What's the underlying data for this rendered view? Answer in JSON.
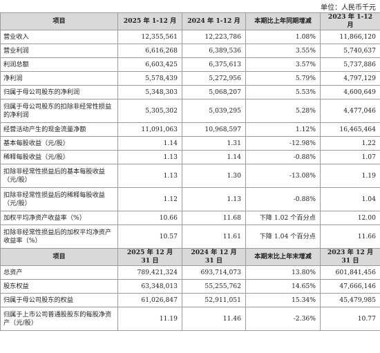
{
  "unit_label": "单位：人民币千元",
  "headers_1": [
    "项目",
    "2025 年 1-12 月",
    "2024 年 1-12 月",
    "本期比上年同期增减",
    "2023 年 1-12 月"
  ],
  "rows_1": [
    {
      "label": "营业收入",
      "v2025": "12,355,561",
      "v2024": "12,223,786",
      "change": "1.08%",
      "v2023": "11,866,120"
    },
    {
      "label": "营业利润",
      "v2025": "6,616,268",
      "v2024": "6,389,536",
      "change": "3.55%",
      "v2023": "5,740,637"
    },
    {
      "label": "利润总额",
      "v2025": "6,603,425",
      "v2024": "6,375,613",
      "change": "3.57%",
      "v2023": "5,737,886"
    },
    {
      "label": "净利润",
      "v2025": "5,578,439",
      "v2024": "5,272,956",
      "change": "5.79%",
      "v2023": "4,797,129"
    },
    {
      "label": "归属于母公司股东的净利润",
      "v2025": "5,348,303",
      "v2024": "5,068,207",
      "change": "5.53%",
      "v2023": "4,600,649"
    },
    {
      "label": "归属于母公司股东的扣除非经常性损益的净利润",
      "v2025": "5,305,302",
      "v2024": "5,039,295",
      "change": "5.28%",
      "v2023": "4,477,046"
    },
    {
      "label": "经营活动产生的现金流量净额",
      "v2025": "11,091,063",
      "v2024": "10,968,597",
      "change": "1.12%",
      "v2023": "16,465,464"
    },
    {
      "label": "基本每股收益（元/股）",
      "v2025": "1.14",
      "v2024": "1.31",
      "change": "-12.98%",
      "v2023": "1.22"
    },
    {
      "label": "稀释每股收益（元/股）",
      "v2025": "1.13",
      "v2024": "1.14",
      "change": "-0.88%",
      "v2023": "1.07"
    },
    {
      "label": "扣除非经常性损益后的基本每股收益（元/股）",
      "v2025": "1.13",
      "v2024": "1.30",
      "change": "-13.08%",
      "v2023": "1.19"
    },
    {
      "label": "扣除非经常性损益后的稀释每股收益（元/股）",
      "v2025": "1.12",
      "v2024": "1.13",
      "change": "-0.88%",
      "v2023": "1.04"
    },
    {
      "label": "加权平均净资产收益率（%）",
      "v2025": "10.66",
      "v2024": "11.68",
      "change": "下降 1.02 个百分点",
      "v2023": "12.00"
    },
    {
      "label": "扣除非经常性损益后的加权平均净资产收益率（%）",
      "v2025": "10.57",
      "v2024": "11.61",
      "change": "下降 1.04 个百分点",
      "v2023": "11.66"
    }
  ],
  "headers_2": [
    "项目",
    "2025 年 12 月 31 日",
    "2024 年 12 月 31 日",
    "本期末比上年末增减",
    "2023 年 12 月 31 日"
  ],
  "rows_2": [
    {
      "label": "总资产",
      "v2025": "789,421,324",
      "v2024": "693,714,073",
      "change": "13.80%",
      "v2023": "601,841,456"
    },
    {
      "label": "股东权益",
      "v2025": "63,348,013",
      "v2024": "55,255,762",
      "change": "14.65%",
      "v2023": "47,666,146"
    },
    {
      "label": "归属于母公司股东的权益",
      "v2025": "61,026,847",
      "v2024": "52,911,051",
      "change": "15.34%",
      "v2023": "45,479,985"
    },
    {
      "label": "归属于上市公司普通股股东的每股净资产（元/股）",
      "v2025": "11.19",
      "v2024": "11.46",
      "change": "-2.36%",
      "v2023": "10.77"
    }
  ]
}
